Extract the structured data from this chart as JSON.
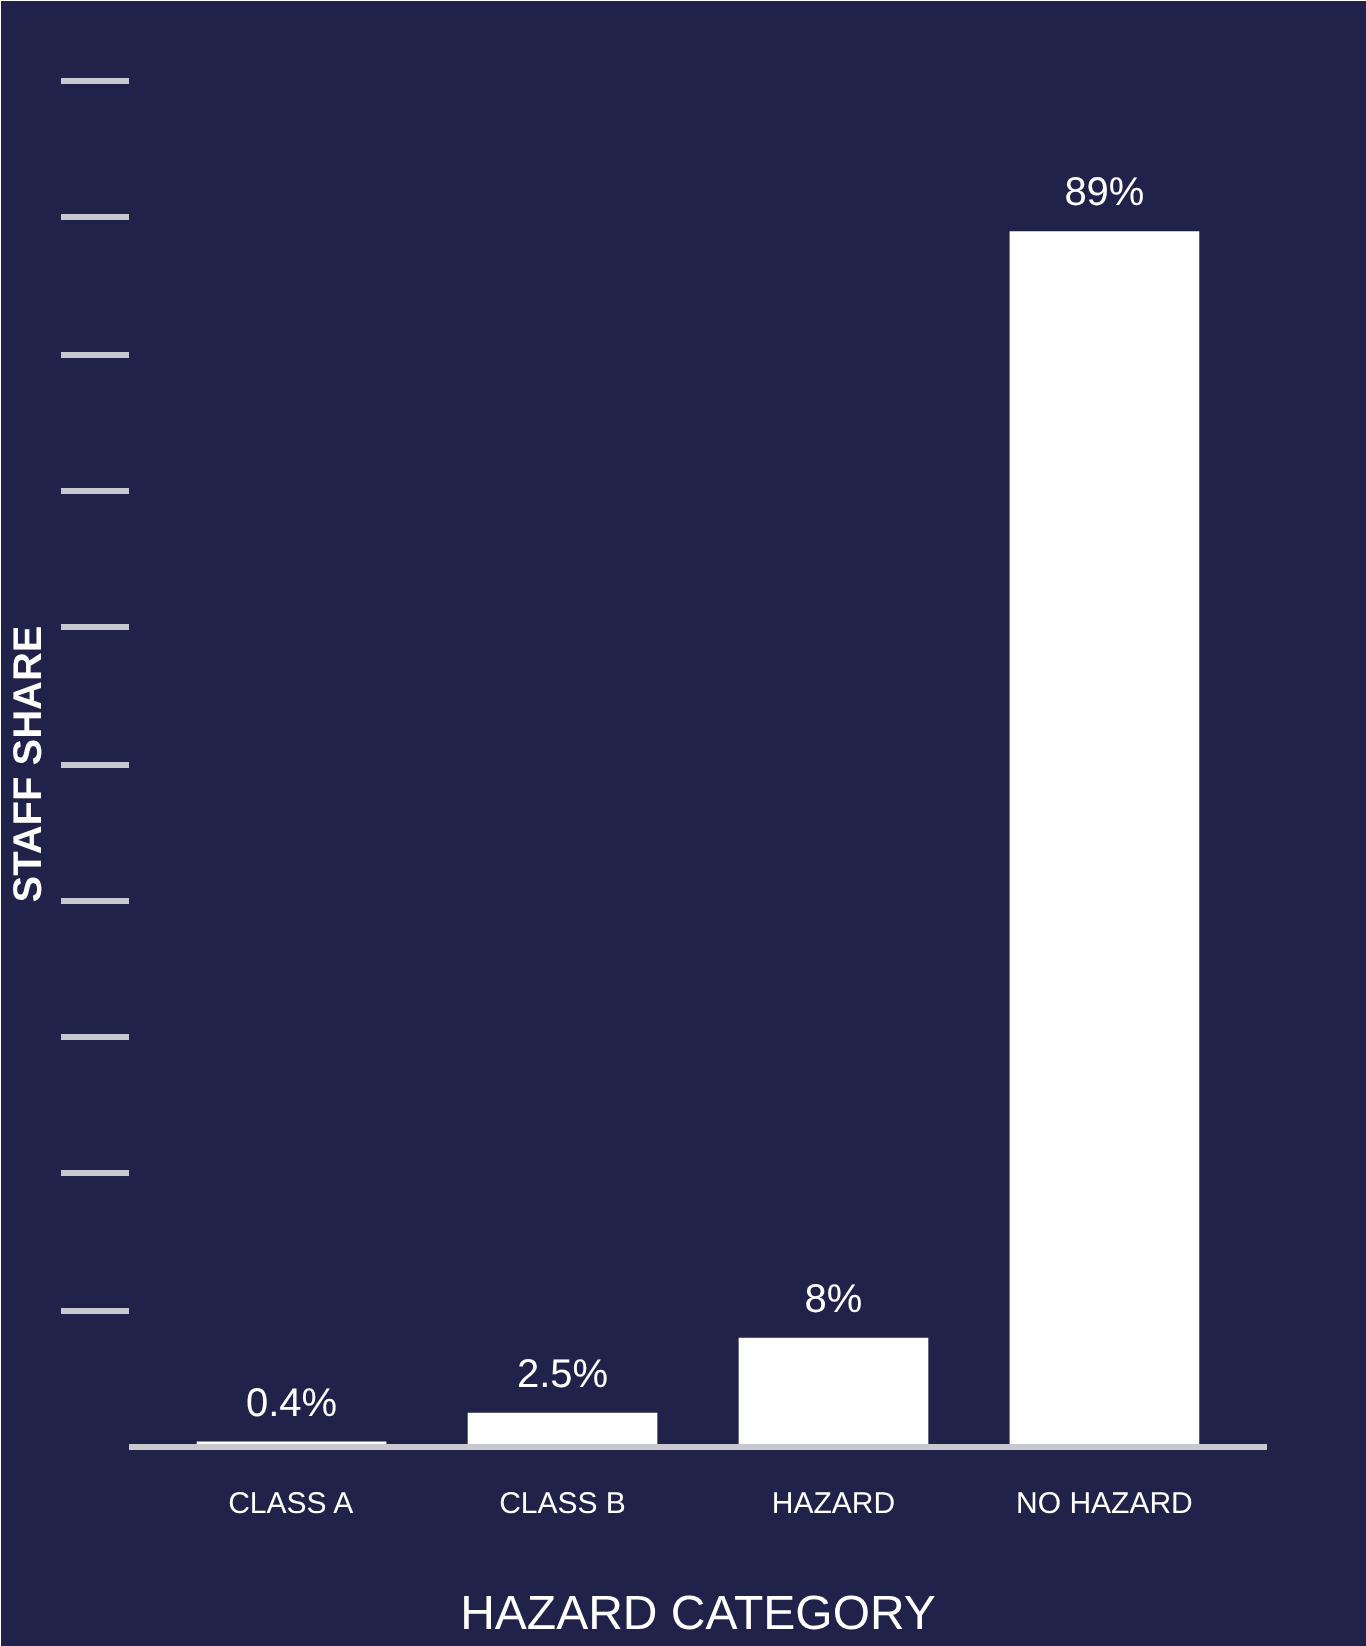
{
  "chart_data": {
    "type": "bar",
    "xlabel": "HAZARD CATEGORY",
    "ylabel": "STAFF SHARE",
    "categories": [
      "CLASS A",
      "CLASS B",
      "HAZARD",
      "NO HAZARD"
    ],
    "values": [
      0.4,
      2.5,
      8,
      89
    ],
    "color": "#ffffff",
    "data_labels": true,
    "value_labels": [
      "0.4%",
      "2.5%",
      "8%",
      "89%"
    ],
    "ylim": [
      0,
      100
    ],
    "tick_labels": "x",
    "grid": false
  }
}
